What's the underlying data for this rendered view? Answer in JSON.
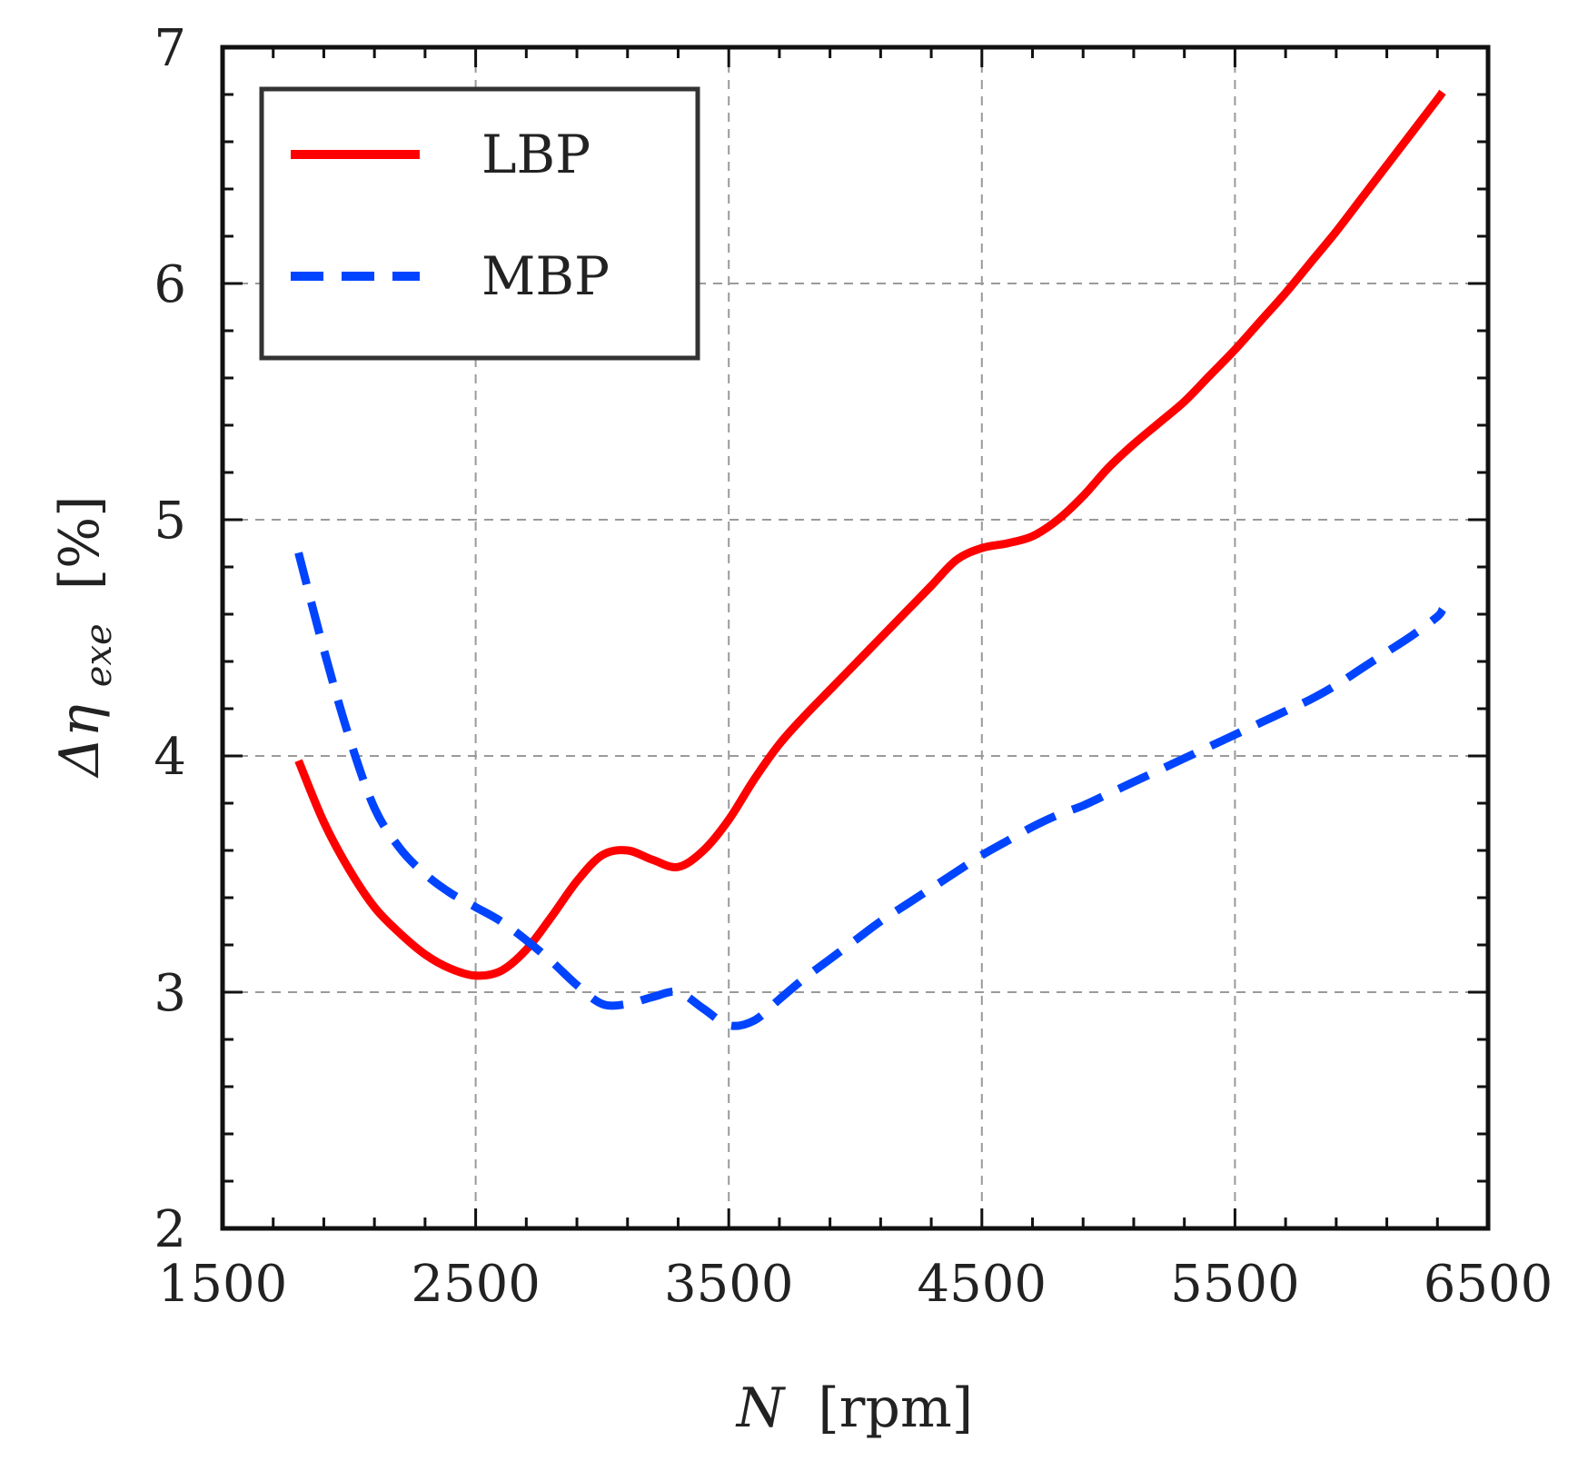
{
  "chart_data": {
    "type": "line",
    "title": "",
    "xlabel_var": "N",
    "xlabel_unit": "[rpm]",
    "ylabel_prefix": "Δη",
    "ylabel_sub": "exe",
    "ylabel_unit": "[%]",
    "xlim": [
      1500,
      6500
    ],
    "ylim": [
      2,
      7
    ],
    "xticks": [
      1500,
      2500,
      3500,
      4500,
      5500,
      6500
    ],
    "yticks": [
      2,
      3,
      4,
      5,
      6,
      7
    ],
    "grid": true,
    "legend_position": "top-left",
    "series": [
      {
        "name": "LBP",
        "color": "#ff0000",
        "style": "solid",
        "x": [
          1800,
          1900,
          2000,
          2100,
          2200,
          2300,
          2400,
          2500,
          2600,
          2700,
          2800,
          2900,
          3000,
          3100,
          3200,
          3300,
          3400,
          3500,
          3600,
          3700,
          3800,
          3900,
          4000,
          4100,
          4200,
          4300,
          4400,
          4500,
          4600,
          4700,
          4800,
          4900,
          5000,
          5100,
          5200,
          5300,
          5400,
          5500,
          5600,
          5700,
          5800,
          5900,
          6000,
          6100,
          6200,
          6300,
          6320
        ],
        "y": [
          3.98,
          3.72,
          3.52,
          3.36,
          3.25,
          3.16,
          3.1,
          3.07,
          3.09,
          3.18,
          3.32,
          3.47,
          3.58,
          3.6,
          3.56,
          3.53,
          3.6,
          3.73,
          3.9,
          4.05,
          4.17,
          4.28,
          4.39,
          4.5,
          4.61,
          4.72,
          4.83,
          4.88,
          4.9,
          4.93,
          5.0,
          5.1,
          5.22,
          5.32,
          5.41,
          5.5,
          5.61,
          5.72,
          5.84,
          5.96,
          6.09,
          6.22,
          6.36,
          6.5,
          6.64,
          6.78,
          6.81
        ]
      },
      {
        "name": "MBP",
        "color": "#0044ff",
        "style": "dashed",
        "x": [
          1800,
          1900,
          2000,
          2100,
          2200,
          2300,
          2400,
          2500,
          2600,
          2700,
          2800,
          2900,
          3000,
          3100,
          3200,
          3300,
          3400,
          3500,
          3600,
          3700,
          3800,
          3900,
          4000,
          4100,
          4200,
          4300,
          4400,
          4500,
          4600,
          4700,
          4800,
          4900,
          5000,
          5100,
          5200,
          5300,
          5400,
          5500,
          5600,
          5700,
          5800,
          5900,
          6000,
          6100,
          6200,
          6300,
          6320
        ],
        "y": [
          4.86,
          4.45,
          4.08,
          3.78,
          3.61,
          3.5,
          3.42,
          3.36,
          3.3,
          3.22,
          3.13,
          3.03,
          2.95,
          2.95,
          2.98,
          3.0,
          2.93,
          2.86,
          2.88,
          2.97,
          3.06,
          3.14,
          3.22,
          3.3,
          3.37,
          3.44,
          3.51,
          3.58,
          3.64,
          3.7,
          3.75,
          3.79,
          3.84,
          3.89,
          3.94,
          3.99,
          4.04,
          4.09,
          4.14,
          4.19,
          4.24,
          4.3,
          4.37,
          4.44,
          4.51,
          4.59,
          4.62
        ]
      }
    ]
  }
}
